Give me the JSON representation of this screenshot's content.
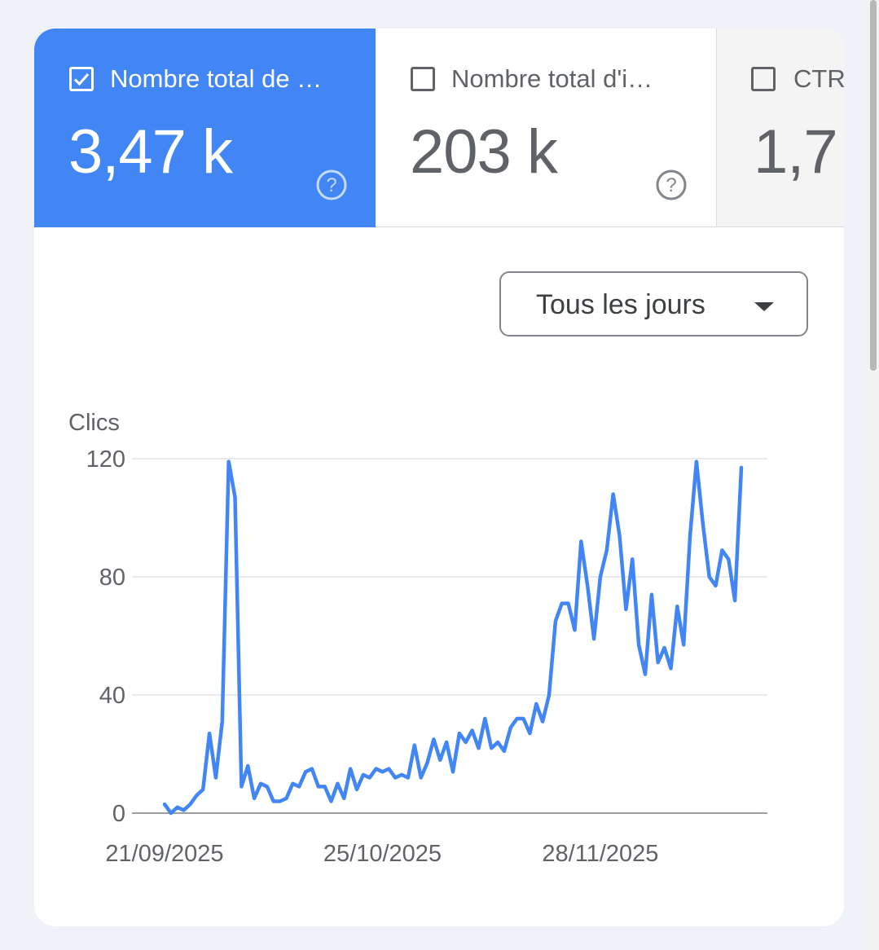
{
  "metrics": [
    {
      "label": "Nombre total de …",
      "value": "3,47 k",
      "checked": true,
      "help_icon": "help-circle-icon"
    },
    {
      "label": "Nombre total d'i…",
      "value": "203 k",
      "checked": false,
      "help_icon": "help-circle-icon"
    },
    {
      "label": "CTR",
      "value": "1,7",
      "checked": false
    }
  ],
  "granularity_dropdown": {
    "selected": "Tous les jours",
    "icon": "caret-down-icon"
  },
  "colors": {
    "accent": "#4285f4",
    "line": "#4285f4",
    "grid": "#e8eaed",
    "text_muted": "#5f6368"
  },
  "chart_data": {
    "type": "line",
    "ylabel": "Clics",
    "ylim": [
      0,
      120
    ],
    "yticks": [
      0,
      40,
      80,
      120
    ],
    "xtick_labels": [
      "21/09/2025",
      "25/10/2025",
      "28/11/2025"
    ],
    "grid": true,
    "x_start": "21/09/2025",
    "series": [
      {
        "values": [
          3,
          0,
          2,
          1,
          3,
          6,
          8,
          27,
          12,
          31,
          119,
          107,
          9,
          16,
          5,
          10,
          9,
          4,
          4,
          5,
          10,
          9,
          14,
          15,
          9,
          9,
          4,
          10,
          5,
          15,
          8,
          13,
          12,
          15,
          14,
          15,
          12,
          13,
          12,
          23,
          12,
          17,
          25,
          18,
          24,
          14,
          27,
          24,
          28,
          22,
          32,
          22,
          24,
          21,
          29,
          32,
          32,
          27,
          37,
          31,
          40,
          65,
          71,
          71,
          62,
          92,
          77,
          59,
          80,
          89,
          108,
          94,
          69,
          86,
          57,
          47,
          74,
          51,
          56,
          49,
          70,
          57,
          94,
          119,
          98,
          80,
          77,
          89,
          86,
          72,
          117
        ]
      }
    ]
  }
}
